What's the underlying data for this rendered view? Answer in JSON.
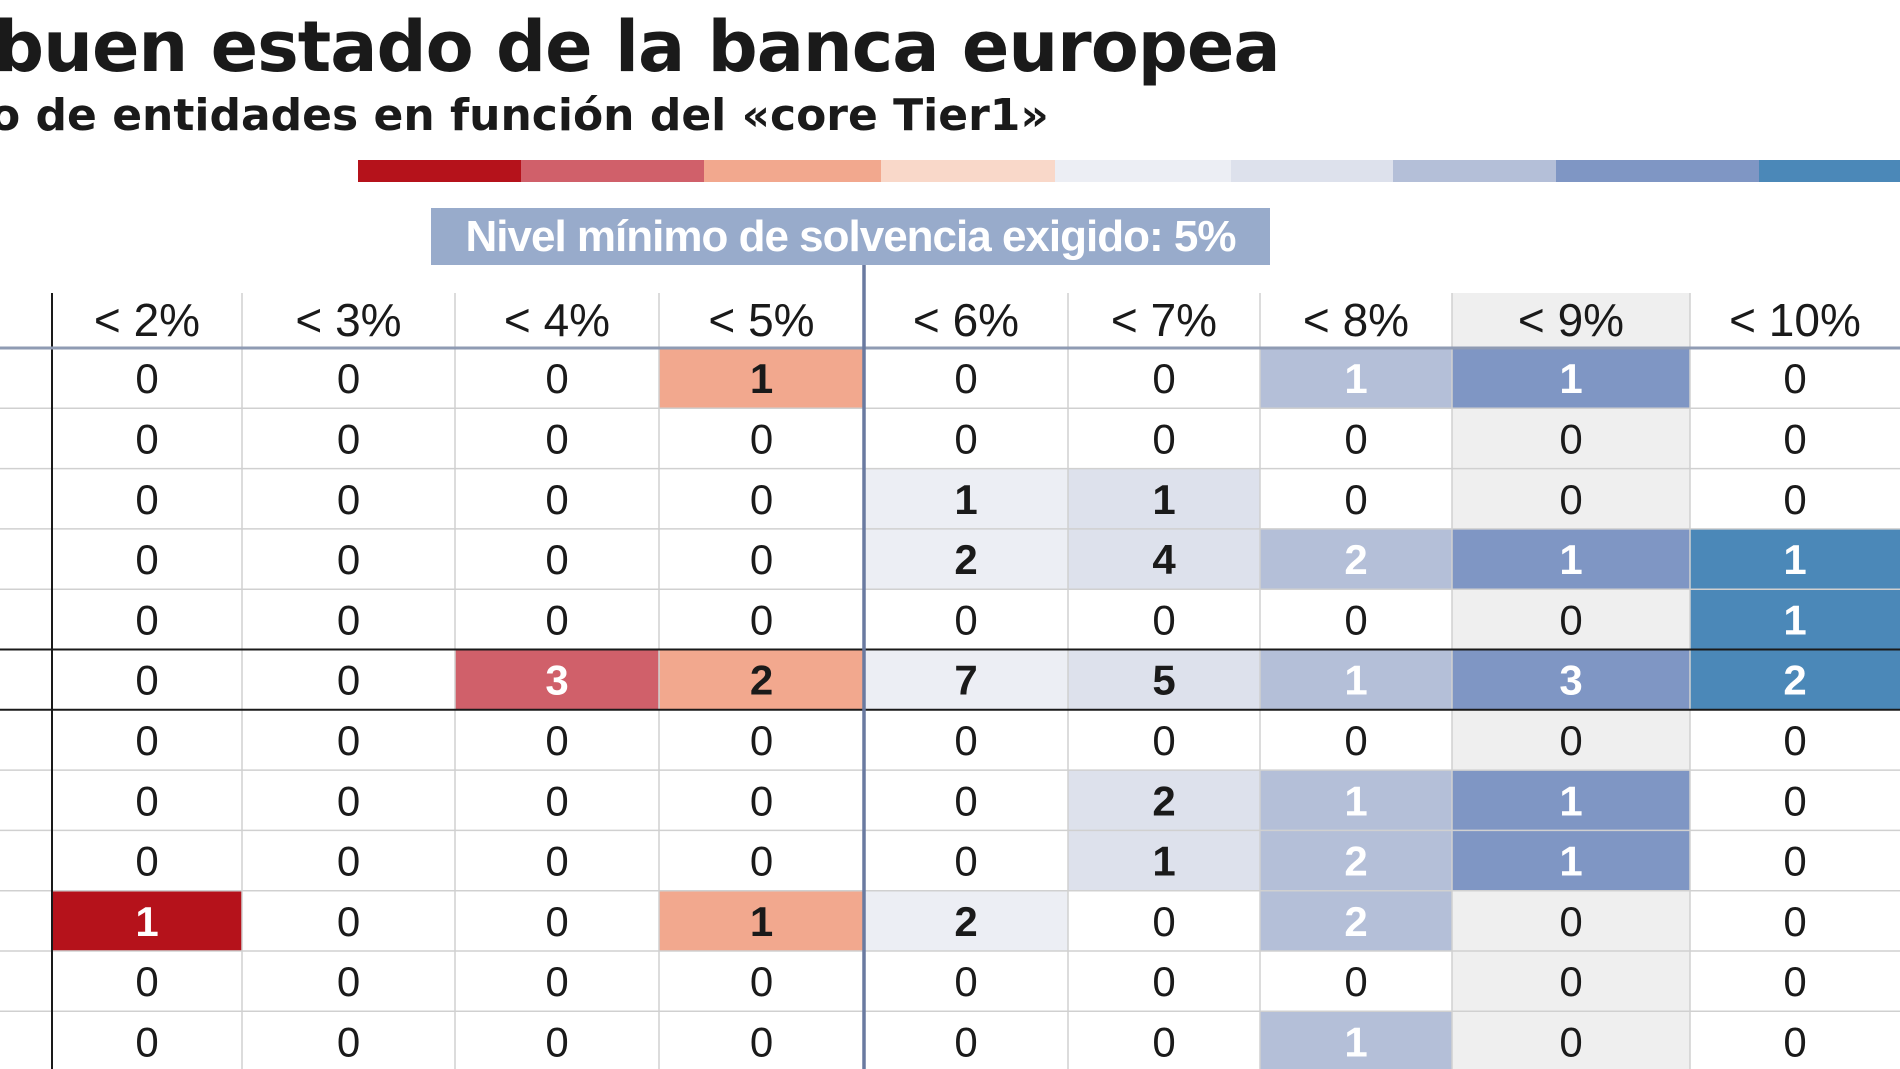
{
  "title": "buen estado de la banca europea",
  "subtitle": "o de entidades en función del «core Tier1»",
  "threshold_note": "Nivel mínimo de solvencia exigido: 5%",
  "colors": {
    "scale": [
      "#b5121b",
      "#d0606a",
      "#f2a88e",
      "#f9d8c9",
      "#eceef4",
      "#dde1ec",
      "#b4bfd8",
      "#7f96c4",
      "#4b88b8"
    ],
    "text_dark": "#1a1a1a",
    "note_bg": "#98abcb",
    "note_text": "#ffffff",
    "grid": "#d0d0d0",
    "header_line": "#8f9bb3",
    "threshold_line": "#6a7aa0",
    "highlight_col_bg": "#efefef"
  },
  "chart_data": {
    "type": "heatmap",
    "title": "buen estado de la banca europea",
    "subtitle": "o de entidades en función del «core Tier1»",
    "columns": [
      "< 2%",
      "< 3%",
      "< 4%",
      "< 5%",
      "< 6%",
      "< 7%",
      "< 8%",
      "< 9%",
      "< 10%"
    ],
    "values": [
      [
        0,
        0,
        0,
        1,
        0,
        0,
        1,
        1,
        0
      ],
      [
        0,
        0,
        0,
        0,
        0,
        0,
        0,
        0,
        0
      ],
      [
        0,
        0,
        0,
        0,
        1,
        1,
        0,
        0,
        0
      ],
      [
        0,
        0,
        0,
        0,
        2,
        4,
        2,
        1,
        1
      ],
      [
        0,
        0,
        0,
        0,
        0,
        0,
        0,
        0,
        1
      ],
      [
        0,
        0,
        3,
        2,
        7,
        5,
        1,
        3,
        2
      ],
      [
        0,
        0,
        0,
        0,
        0,
        0,
        0,
        0,
        0
      ],
      [
        0,
        0,
        0,
        0,
        0,
        2,
        1,
        1,
        0
      ],
      [
        0,
        0,
        0,
        0,
        0,
        1,
        2,
        1,
        0
      ],
      [
        1,
        0,
        0,
        1,
        2,
        0,
        2,
        0,
        0
      ],
      [
        0,
        0,
        0,
        0,
        0,
        0,
        0,
        0,
        0
      ],
      [
        0,
        0,
        0,
        0,
        0,
        0,
        1,
        0,
        0
      ]
    ],
    "threshold": "5%",
    "threshold_label": "Nivel mínimo de solvencia exigido: 5%",
    "emphasized_row": 5,
    "highlighted_column": 7
  }
}
